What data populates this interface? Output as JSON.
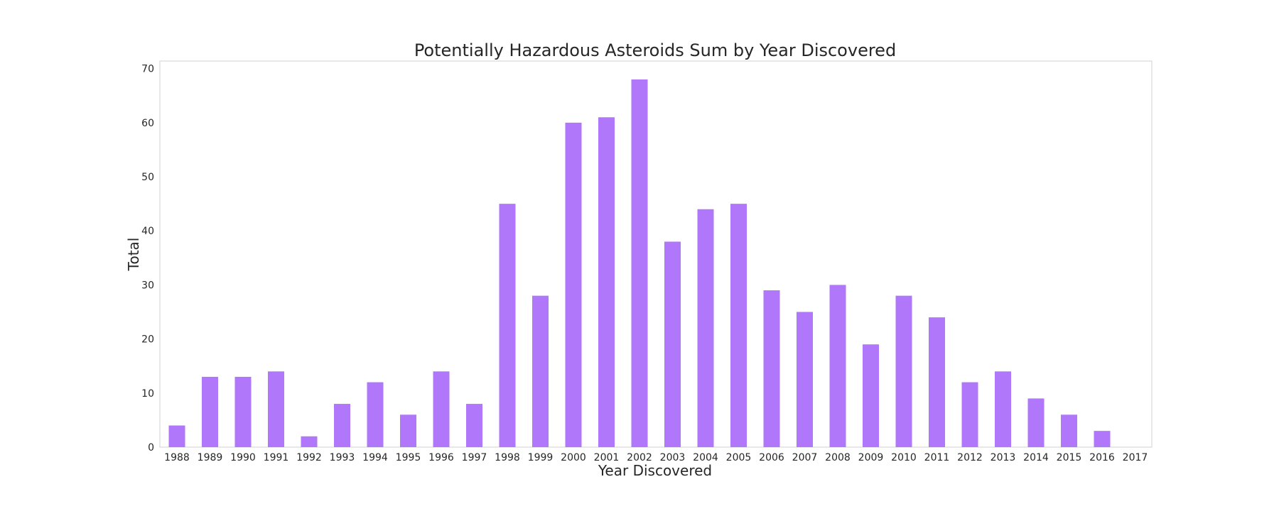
{
  "chart_data": {
    "type": "bar",
    "title": "Potentially Hazardous Asteroids Sum by Year Discovered",
    "xlabel": "Year Discovered",
    "ylabel": "Total",
    "categories": [
      "1988",
      "1989",
      "1990",
      "1991",
      "1992",
      "1993",
      "1994",
      "1995",
      "1996",
      "1997",
      "1998",
      "1999",
      "2000",
      "2001",
      "2002",
      "2003",
      "2004",
      "2005",
      "2006",
      "2007",
      "2008",
      "2009",
      "2010",
      "2011",
      "2012",
      "2013",
      "2014",
      "2015",
      "2016",
      "2017"
    ],
    "values": [
      4,
      13,
      13,
      14,
      2,
      8,
      12,
      6,
      14,
      8,
      45,
      28,
      60,
      61,
      68,
      38,
      44,
      45,
      29,
      25,
      30,
      19,
      28,
      24,
      12,
      14,
      9,
      6,
      3,
      0
    ],
    "ylim": [
      0,
      71.4
    ],
    "yticks": [
      0,
      10,
      20,
      30,
      40,
      50,
      60,
      70
    ],
    "grid": false,
    "bar_color": "#b077fa",
    "frame_color": "#d0d0d0"
  }
}
